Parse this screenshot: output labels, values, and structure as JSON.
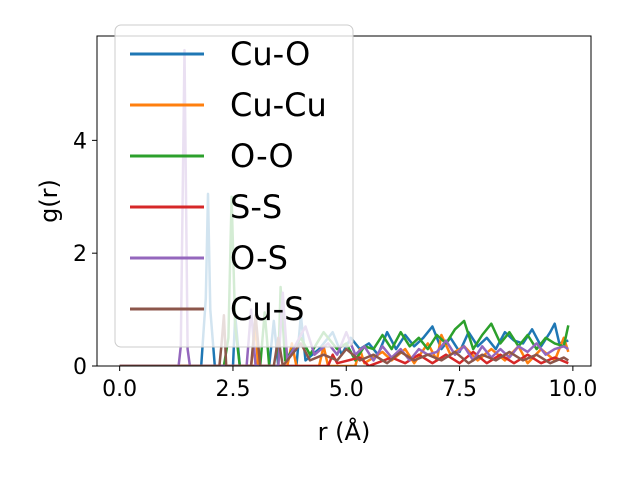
{
  "chart_data": {
    "type": "line",
    "title": "",
    "xlabel": "r (Å)",
    "ylabel": "g(r)",
    "xlim": [
      -0.5,
      10.4
    ],
    "ylim": [
      0,
      5.85
    ],
    "xticks": [
      0.0,
      2.5,
      5.0,
      7.5,
      10.0
    ],
    "xtick_labels": [
      "0.0",
      "2.5",
      "5.0",
      "7.5",
      "10.0"
    ],
    "yticks": [
      0,
      2,
      4
    ],
    "ytick_labels": [
      "0",
      "2",
      "4"
    ],
    "grid": false,
    "legend_position": "upper-left",
    "series": [
      {
        "name": "Cu-O",
        "color": "#1f77b4",
        "points": [
          [
            0,
            0
          ],
          [
            1.8,
            0
          ],
          [
            1.9,
            1.2
          ],
          [
            1.95,
            3.05
          ],
          [
            2.0,
            1.0
          ],
          [
            2.1,
            0
          ],
          [
            2.5,
            0
          ],
          [
            2.55,
            0.9
          ],
          [
            2.65,
            0
          ],
          [
            3.3,
            0
          ],
          [
            3.4,
            0.8
          ],
          [
            3.5,
            0
          ],
          [
            3.9,
            0
          ],
          [
            4.0,
            0.9
          ],
          [
            4.1,
            0.1
          ],
          [
            4.4,
            0.3
          ],
          [
            4.7,
            0.6
          ],
          [
            4.9,
            0.2
          ],
          [
            5.1,
            0.5
          ],
          [
            5.3,
            0.3
          ],
          [
            5.5,
            0.4
          ],
          [
            5.7,
            0.2
          ],
          [
            5.9,
            0.6
          ],
          [
            6.1,
            0.3
          ],
          [
            6.3,
            0.55
          ],
          [
            6.5,
            0.35
          ],
          [
            6.7,
            0.5
          ],
          [
            6.9,
            0.7
          ],
          [
            7.1,
            0.3
          ],
          [
            7.3,
            0.5
          ],
          [
            7.5,
            0.25
          ],
          [
            7.7,
            0.6
          ],
          [
            7.9,
            0.35
          ],
          [
            8.1,
            0.5
          ],
          [
            8.3,
            0.3
          ],
          [
            8.5,
            0.6
          ],
          [
            8.7,
            0.45
          ],
          [
            8.9,
            0.4
          ],
          [
            9.1,
            0.65
          ],
          [
            9.3,
            0.35
          ],
          [
            9.5,
            0.6
          ],
          [
            9.6,
            0.75
          ],
          [
            9.7,
            0.4
          ],
          [
            9.9,
            0.45
          ]
        ]
      },
      {
        "name": "Cu-Cu",
        "color": "#ff7f0e",
        "points": [
          [
            0,
            0
          ],
          [
            2.9,
            0
          ],
          [
            2.95,
            0.35
          ],
          [
            3.0,
            0.8
          ],
          [
            3.05,
            0
          ],
          [
            3.7,
            0
          ],
          [
            3.8,
            0.4
          ],
          [
            3.9,
            0
          ],
          [
            4.4,
            0
          ],
          [
            4.5,
            0.35
          ],
          [
            4.6,
            0
          ],
          [
            5.2,
            0
          ],
          [
            5.3,
            0.3
          ],
          [
            5.4,
            0.05
          ],
          [
            5.8,
            0.25
          ],
          [
            6.0,
            0.1
          ],
          [
            6.3,
            0.3
          ],
          [
            6.5,
            0.05
          ],
          [
            6.8,
            0.4
          ],
          [
            7.0,
            0.1
          ],
          [
            7.1,
            0.55
          ],
          [
            7.3,
            0.2
          ],
          [
            7.6,
            0.35
          ],
          [
            7.9,
            0.1
          ],
          [
            8.2,
            0.3
          ],
          [
            8.5,
            0.1
          ],
          [
            8.8,
            0.35
          ],
          [
            9.0,
            0.05
          ],
          [
            9.3,
            0.3
          ],
          [
            9.6,
            0.1
          ],
          [
            9.8,
            0.5
          ],
          [
            9.9,
            0.25
          ]
        ]
      },
      {
        "name": "O-O",
        "color": "#2ca02c",
        "points": [
          [
            0,
            0
          ],
          [
            2.3,
            0
          ],
          [
            2.4,
            0.5
          ],
          [
            2.47,
            3.0
          ],
          [
            2.55,
            0.7
          ],
          [
            2.65,
            0
          ],
          [
            3.1,
            0
          ],
          [
            3.2,
            0.95
          ],
          [
            3.3,
            0
          ],
          [
            3.5,
            0
          ],
          [
            3.55,
            1.4
          ],
          [
            3.65,
            0.1
          ],
          [
            4.0,
            0.5
          ],
          [
            4.2,
            0.2
          ],
          [
            4.5,
            0.6
          ],
          [
            4.8,
            0.3
          ],
          [
            5.0,
            0.4
          ],
          [
            5.2,
            0.1
          ],
          [
            5.4,
            0.35
          ],
          [
            5.6,
            0.3
          ],
          [
            5.8,
            0.55
          ],
          [
            6.0,
            0.3
          ],
          [
            6.2,
            0.6
          ],
          [
            6.4,
            0.35
          ],
          [
            6.6,
            0.5
          ],
          [
            6.8,
            0.3
          ],
          [
            7.0,
            0.55
          ],
          [
            7.2,
            0.4
          ],
          [
            7.4,
            0.65
          ],
          [
            7.6,
            0.8
          ],
          [
            7.8,
            0.3
          ],
          [
            8.0,
            0.55
          ],
          [
            8.2,
            0.75
          ],
          [
            8.4,
            0.4
          ],
          [
            8.6,
            0.6
          ],
          [
            8.8,
            0.35
          ],
          [
            9.0,
            0.55
          ],
          [
            9.2,
            0.3
          ],
          [
            9.4,
            0.5
          ],
          [
            9.6,
            0.4
          ],
          [
            9.8,
            0.35
          ],
          [
            9.9,
            0.72
          ]
        ]
      },
      {
        "name": "S-S",
        "color": "#d62728",
        "points": [
          [
            0,
            0
          ],
          [
            4.6,
            0
          ],
          [
            4.7,
            0.2
          ],
          [
            4.8,
            0.05
          ],
          [
            5.3,
            0.15
          ],
          [
            5.5,
            0
          ],
          [
            6.0,
            0.15
          ],
          [
            6.3,
            0.05
          ],
          [
            6.6,
            0.2
          ],
          [
            6.9,
            0.05
          ],
          [
            7.2,
            0.2
          ],
          [
            7.5,
            0.05
          ],
          [
            7.8,
            0.25
          ],
          [
            8.1,
            0.05
          ],
          [
            8.4,
            0.2
          ],
          [
            8.7,
            0.05
          ],
          [
            9.0,
            0.2
          ],
          [
            9.3,
            0.05
          ],
          [
            9.6,
            0.15
          ],
          [
            9.9,
            0.05
          ]
        ]
      },
      {
        "name": "O-S",
        "color": "#9467bd",
        "points": [
          [
            0,
            0
          ],
          [
            1.3,
            0
          ],
          [
            1.35,
            0.35
          ],
          [
            1.43,
            5.6
          ],
          [
            1.5,
            0.3
          ],
          [
            1.55,
            0
          ],
          [
            2.8,
            0
          ],
          [
            2.9,
            1.0
          ],
          [
            3.0,
            0
          ],
          [
            3.5,
            0
          ],
          [
            3.6,
            1.3
          ],
          [
            3.7,
            0.1
          ],
          [
            4.1,
            0.7
          ],
          [
            4.3,
            0.2
          ],
          [
            4.6,
            0.4
          ],
          [
            4.8,
            0.2
          ],
          [
            5.0,
            0.6
          ],
          [
            5.2,
            0.2
          ],
          [
            5.4,
            0.35
          ],
          [
            5.6,
            0.1
          ],
          [
            5.8,
            0.35
          ],
          [
            6.0,
            0.15
          ],
          [
            6.2,
            0.3
          ],
          [
            6.4,
            0.1
          ],
          [
            6.6,
            0.3
          ],
          [
            6.8,
            0.2
          ],
          [
            7.0,
            0.25
          ],
          [
            7.2,
            0.45
          ],
          [
            7.4,
            0.2
          ],
          [
            7.6,
            0.35
          ],
          [
            7.8,
            0.1
          ],
          [
            8.0,
            0.35
          ],
          [
            8.2,
            0.15
          ],
          [
            8.4,
            0.3
          ],
          [
            8.6,
            0.15
          ],
          [
            8.8,
            0.35
          ],
          [
            9.0,
            0.25
          ],
          [
            9.2,
            0.4
          ],
          [
            9.4,
            0.2
          ],
          [
            9.6,
            0.3
          ],
          [
            9.8,
            0.35
          ],
          [
            9.9,
            0.3
          ]
        ]
      },
      {
        "name": "Cu-S",
        "color": "#8c564b",
        "points": [
          [
            0,
            0
          ],
          [
            2.2,
            0
          ],
          [
            2.25,
            0.4
          ],
          [
            2.3,
            0.9
          ],
          [
            2.35,
            0
          ],
          [
            2.9,
            0
          ],
          [
            3.0,
            0.9
          ],
          [
            3.1,
            0
          ],
          [
            3.4,
            0
          ],
          [
            3.5,
            0.5
          ],
          [
            3.6,
            0
          ],
          [
            4.0,
            0.4
          ],
          [
            4.2,
            0.1
          ],
          [
            4.5,
            0.2
          ],
          [
            4.8,
            0.1
          ],
          [
            5.0,
            0.3
          ],
          [
            5.3,
            0.1
          ],
          [
            5.6,
            0.2
          ],
          [
            5.9,
            0.05
          ],
          [
            6.2,
            0.25
          ],
          [
            6.5,
            0.1
          ],
          [
            6.8,
            0.2
          ],
          [
            7.1,
            0.1
          ],
          [
            7.4,
            0.25
          ],
          [
            7.7,
            0.05
          ],
          [
            8.0,
            0.2
          ],
          [
            8.3,
            0.1
          ],
          [
            8.6,
            0.25
          ],
          [
            8.9,
            0.1
          ],
          [
            9.2,
            0.2
          ],
          [
            9.5,
            0.05
          ],
          [
            9.8,
            0.15
          ],
          [
            9.9,
            0.1
          ]
        ]
      }
    ]
  }
}
